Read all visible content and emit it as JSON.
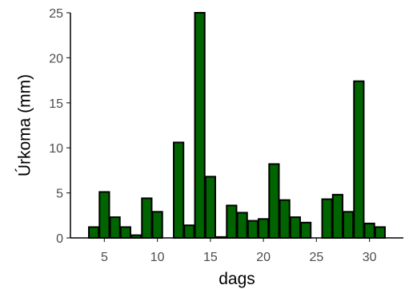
{
  "chart_data": {
    "type": "bar",
    "xlabel": "dags",
    "ylabel": "Úrkoma (mm)",
    "x": [
      4,
      5,
      6,
      7,
      8,
      9,
      10,
      11,
      12,
      13,
      14,
      15,
      16,
      17,
      18,
      19,
      20,
      21,
      22,
      23,
      24,
      25,
      26,
      27,
      28,
      29,
      30,
      31
    ],
    "values": [
      1.2,
      5.1,
      2.3,
      1.2,
      0.3,
      4.4,
      2.9,
      0,
      10.6,
      1.4,
      25.0,
      6.8,
      0.1,
      3.6,
      2.8,
      1.9,
      2.1,
      8.2,
      4.2,
      2.3,
      1.7,
      0,
      4.3,
      4.8,
      2.9,
      17.4,
      1.6,
      1.2
    ],
    "xticks": [
      5,
      10,
      15,
      20,
      25,
      30
    ],
    "yticks": [
      0,
      5,
      10,
      15,
      20,
      25
    ],
    "xlim": [
      1.8,
      33.2
    ],
    "ylim": [
      0,
      25
    ],
    "bar_color": "#006400",
    "grid": false
  }
}
